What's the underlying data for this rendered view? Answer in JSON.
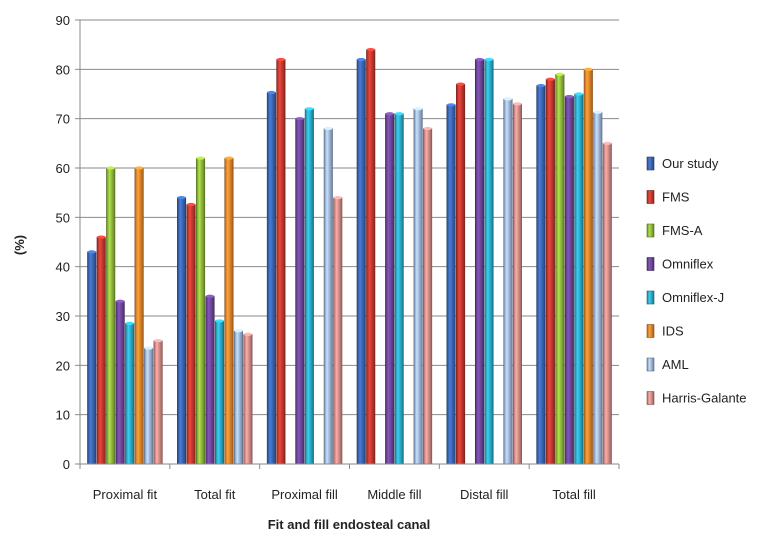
{
  "chart_data": {
    "type": "bar",
    "title": "",
    "xlabel": "Fit and fill endosteal canal",
    "ylabel": "(%)",
    "ylim": [
      0,
      90
    ],
    "yticks": [
      0,
      10,
      20,
      30,
      40,
      50,
      60,
      70,
      80,
      90
    ],
    "grid": true,
    "legend_position": "right",
    "categories": [
      "Proximal fit",
      "Total fit",
      "Proximal fill",
      "Middle fill",
      "Distal fill",
      "Total fill"
    ],
    "series": [
      {
        "name": "Our study",
        "color": "#3a64ae",
        "values": [
          43,
          54,
          75.3,
          82,
          72.8,
          76.7
        ]
      },
      {
        "name": "FMS",
        "color": "#c0382f",
        "values": [
          46,
          52.6,
          82,
          84,
          77,
          78
        ]
      },
      {
        "name": "FMS-A",
        "color": "#8db53b",
        "values": [
          60,
          62,
          null,
          null,
          null,
          79
        ]
      },
      {
        "name": "Omniflex",
        "color": "#6b4596",
        "values": [
          33,
          34,
          70,
          71,
          82,
          74.5
        ]
      },
      {
        "name": "Omniflex-J",
        "color": "#2ba7c4",
        "values": [
          28.5,
          29,
          72,
          71,
          82,
          75
        ]
      },
      {
        "name": "IDS",
        "color": "#e8822a",
        "values": [
          60,
          62,
          null,
          null,
          null,
          80
        ]
      },
      {
        "name": "AML",
        "color": "#9db4de",
        "values": [
          23.5,
          27,
          68,
          72,
          74,
          71.3
        ]
      },
      {
        "name": "Harris-Galante",
        "color": "#d48a86",
        "values": [
          25,
          26.3,
          54,
          68,
          73,
          65
        ]
      }
    ]
  }
}
